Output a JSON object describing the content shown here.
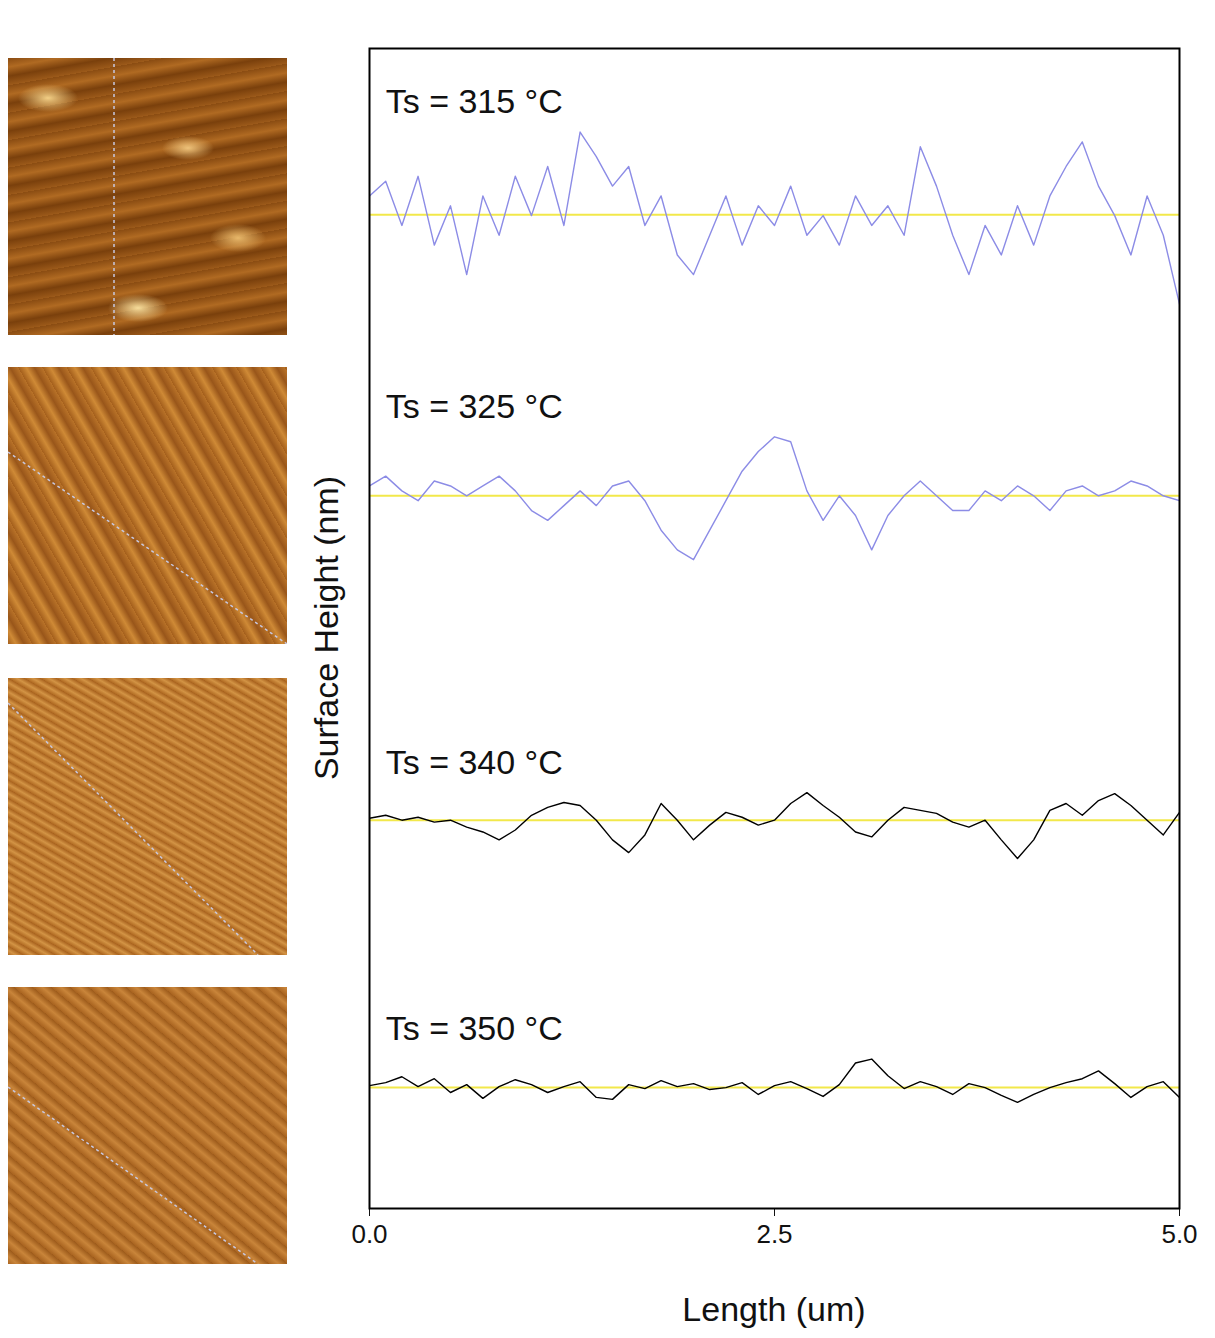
{
  "chart_data": {
    "type": "line",
    "x_label": "Length (um)",
    "y_label": "Surface Height (nm)",
    "x": [
      0,
      0.1,
      0.2,
      0.3,
      0.4,
      0.5,
      0.6,
      0.7,
      0.8,
      0.9,
      1.0,
      1.1,
      1.2,
      1.3,
      1.4,
      1.5,
      1.6,
      1.7,
      1.8,
      1.9,
      2.0,
      2.1,
      2.2,
      2.3,
      2.4,
      2.5,
      2.6,
      2.7,
      2.8,
      2.9,
      3.0,
      3.1,
      3.2,
      3.3,
      3.4,
      3.5,
      3.6,
      3.7,
      3.8,
      3.9,
      4.0,
      4.1,
      4.2,
      4.3,
      4.4,
      4.5,
      4.6,
      4.7,
      4.8,
      4.9,
      5.0
    ],
    "xlim": [
      0,
      5
    ],
    "xticks": [
      {
        "value": 0,
        "label": "0.0"
      },
      2.5,
      {
        "value": 5,
        "label": "5.0"
      }
    ],
    "ylim": [
      0,
      118
    ],
    "tick_labels": "x",
    "grid": false,
    "series": [
      {
        "name": "Ts = 315 °C",
        "color": "#8c8ce6",
        "mean": 101.1,
        "values": [
          103,
          104.5,
          100,
          105,
          98,
          102,
          95,
          103,
          99,
          105,
          101,
          106,
          100,
          109.5,
          107,
          104,
          106,
          100,
          103,
          97,
          95,
          99,
          103,
          98,
          102,
          100,
          104,
          99,
          101,
          98,
          103,
          100,
          102,
          99,
          108,
          104,
          99,
          95,
          100,
          97,
          102,
          98,
          103,
          106,
          108.5,
          104,
          101,
          97,
          103,
          99,
          92
        ]
      },
      {
        "name": "Ts = 325 °C",
        "color": "#8c8ce6",
        "mean": 72.5,
        "values": [
          73.5,
          74.5,
          73,
          72,
          74,
          73.5,
          72.5,
          73.5,
          74.5,
          73,
          71,
          70,
          71.5,
          73,
          71.5,
          73.5,
          74,
          72,
          69,
          67,
          66,
          69,
          72,
          75,
          77,
          78.5,
          78,
          73,
          70,
          72.5,
          70.5,
          67,
          70.5,
          72.5,
          74,
          72.5,
          71,
          71,
          73,
          72,
          73.5,
          72.5,
          71,
          73,
          73.5,
          72.5,
          73,
          74,
          73.5,
          72.5,
          72
        ]
      },
      {
        "name": "Ts = 340 °C",
        "color": "#000000",
        "mean": 39.5,
        "values": [
          39.7,
          40,
          39.5,
          39.8,
          39.3,
          39.5,
          38.8,
          38.3,
          37.5,
          38.5,
          40,
          40.8,
          41.3,
          41,
          39.5,
          37.5,
          36.2,
          38,
          41.2,
          39.5,
          37.5,
          39,
          40.3,
          39.8,
          39,
          39.5,
          41.2,
          42.3,
          41,
          39.8,
          38.3,
          37.8,
          39.5,
          40.8,
          40.5,
          40.2,
          39.3,
          38.8,
          39.5,
          37.5,
          35.6,
          37.5,
          40.5,
          41.2,
          40,
          41.5,
          42.2,
          41,
          39.5,
          38,
          40.3
        ]
      },
      {
        "name": "Ts = 350 °C",
        "color": "#000000",
        "mean": 12.3,
        "values": [
          12.5,
          12.8,
          13.4,
          12.4,
          13.2,
          11.8,
          12.6,
          11.2,
          12.4,
          13.1,
          12.6,
          11.8,
          12.4,
          12.9,
          11.3,
          11.1,
          12.6,
          12.2,
          13,
          12.4,
          12.7,
          12.1,
          12.3,
          12.8,
          11.6,
          12.5,
          12.9,
          12.2,
          11.4,
          12.6,
          14.8,
          15.2,
          13.5,
          12.2,
          12.9,
          12.4,
          11.6,
          12.7,
          12.3,
          11.5,
          10.8,
          11.6,
          12.3,
          12.8,
          13.2,
          14,
          12.7,
          11.3,
          12.4,
          12.9,
          11.3
        ]
      }
    ]
  }
}
